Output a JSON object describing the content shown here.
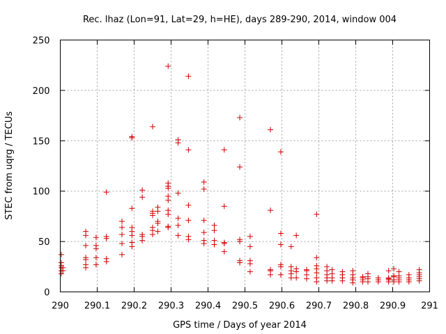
{
  "chart_data": {
    "type": "scatter",
    "title": "Rec. lhaz (Lon=91, Lat=29, h=HE), days 289-290, 2014, window 004",
    "xlabel": "GPS time / Days of year 2014",
    "ylabel": "STEC from uqrg / TECUs",
    "xlim": [
      290,
      291
    ],
    "ylim": [
      0,
      250
    ],
    "xticks": [
      290,
      290.1,
      290.2,
      290.3,
      290.4,
      290.5,
      290.6,
      290.7,
      290.8,
      290.9,
      291
    ],
    "xtick_labels": [
      "290",
      "290.1",
      "290.2",
      "290.3",
      "290.4",
      "290.5",
      "290.6",
      "290.7",
      "290.8",
      "290.9",
      "291"
    ],
    "yticks": [
      0,
      50,
      100,
      150,
      200,
      250
    ],
    "ytick_labels": [
      "0",
      "50",
      "100",
      "150",
      "200",
      "250"
    ],
    "grid": true,
    "marker": "+",
    "color": "#d00000",
    "points": [
      [
        290.003,
        18
      ],
      [
        290.003,
        21
      ],
      [
        290.003,
        24
      ],
      [
        290.003,
        26
      ],
      [
        290.003,
        29
      ],
      [
        290.003,
        37
      ],
      [
        290.007,
        21
      ],
      [
        290.007,
        24
      ],
      [
        290.069,
        24
      ],
      [
        290.069,
        27
      ],
      [
        290.069,
        32
      ],
      [
        290.069,
        34
      ],
      [
        290.069,
        46
      ],
      [
        290.069,
        56
      ],
      [
        290.069,
        60
      ],
      [
        290.097,
        27
      ],
      [
        290.097,
        34
      ],
      [
        290.097,
        43
      ],
      [
        290.097,
        46
      ],
      [
        290.097,
        54
      ],
      [
        290.125,
        30
      ],
      [
        290.125,
        33
      ],
      [
        290.125,
        53
      ],
      [
        290.125,
        55
      ],
      [
        290.125,
        99
      ],
      [
        290.167,
        37
      ],
      [
        290.167,
        48
      ],
      [
        290.167,
        57
      ],
      [
        290.167,
        64
      ],
      [
        290.167,
        70
      ],
      [
        290.194,
        45
      ],
      [
        290.194,
        49
      ],
      [
        290.194,
        56
      ],
      [
        290.194,
        60
      ],
      [
        290.194,
        64
      ],
      [
        290.194,
        83
      ],
      [
        290.194,
        153
      ],
      [
        290.194,
        154
      ],
      [
        290.222,
        51
      ],
      [
        290.222,
        55
      ],
      [
        290.222,
        57
      ],
      [
        290.222,
        94
      ],
      [
        290.222,
        101
      ],
      [
        290.25,
        57
      ],
      [
        290.25,
        61
      ],
      [
        290.25,
        64
      ],
      [
        290.25,
        76
      ],
      [
        290.25,
        78
      ],
      [
        290.25,
        80
      ],
      [
        290.25,
        164
      ],
      [
        290.264,
        60
      ],
      [
        290.264,
        68
      ],
      [
        290.264,
        70
      ],
      [
        290.264,
        80
      ],
      [
        290.264,
        84
      ],
      [
        290.292,
        64
      ],
      [
        290.292,
        65
      ],
      [
        290.292,
        77
      ],
      [
        290.292,
        81
      ],
      [
        290.292,
        91
      ],
      [
        290.292,
        95
      ],
      [
        290.292,
        103
      ],
      [
        290.292,
        105
      ],
      [
        290.292,
        108
      ],
      [
        290.292,
        224
      ],
      [
        290.319,
        56
      ],
      [
        290.319,
        66
      ],
      [
        290.319,
        73
      ],
      [
        290.319,
        98
      ],
      [
        290.319,
        148
      ],
      [
        290.319,
        151
      ],
      [
        290.347,
        52
      ],
      [
        290.347,
        55
      ],
      [
        290.347,
        71
      ],
      [
        290.347,
        86
      ],
      [
        290.347,
        141
      ],
      [
        290.347,
        214
      ],
      [
        290.389,
        48
      ],
      [
        290.389,
        51
      ],
      [
        290.389,
        59
      ],
      [
        290.389,
        71
      ],
      [
        290.389,
        102
      ],
      [
        290.389,
        109
      ],
      [
        290.417,
        47
      ],
      [
        290.417,
        51
      ],
      [
        290.417,
        61
      ],
      [
        290.417,
        66
      ],
      [
        290.444,
        40
      ],
      [
        290.444,
        48
      ],
      [
        290.444,
        49
      ],
      [
        290.444,
        85
      ],
      [
        290.444,
        141
      ],
      [
        290.486,
        29
      ],
      [
        290.486,
        31
      ],
      [
        290.486,
        50
      ],
      [
        290.486,
        52
      ],
      [
        290.486,
        124
      ],
      [
        290.486,
        173
      ],
      [
        290.514,
        20
      ],
      [
        290.514,
        28
      ],
      [
        290.514,
        31
      ],
      [
        290.514,
        45
      ],
      [
        290.514,
        55
      ],
      [
        290.569,
        17
      ],
      [
        290.569,
        21
      ],
      [
        290.569,
        22
      ],
      [
        290.569,
        81
      ],
      [
        290.569,
        161
      ],
      [
        290.597,
        17
      ],
      [
        290.597,
        25
      ],
      [
        290.597,
        27
      ],
      [
        290.597,
        47
      ],
      [
        290.597,
        58
      ],
      [
        290.597,
        139
      ],
      [
        290.625,
        14
      ],
      [
        290.625,
        18
      ],
      [
        290.625,
        21
      ],
      [
        290.625,
        25
      ],
      [
        290.625,
        45
      ],
      [
        290.639,
        14
      ],
      [
        290.639,
        20
      ],
      [
        290.639,
        23
      ],
      [
        290.639,
        56
      ],
      [
        290.667,
        13
      ],
      [
        290.667,
        17
      ],
      [
        290.667,
        21
      ],
      [
        290.667,
        22
      ],
      [
        290.694,
        10
      ],
      [
        290.694,
        14
      ],
      [
        290.694,
        19
      ],
      [
        290.694,
        23
      ],
      [
        290.694,
        26
      ],
      [
        290.694,
        34
      ],
      [
        290.694,
        77
      ],
      [
        290.722,
        11
      ],
      [
        290.722,
        14
      ],
      [
        290.722,
        17
      ],
      [
        290.722,
        21
      ],
      [
        290.722,
        25
      ],
      [
        290.736,
        11
      ],
      [
        290.736,
        14
      ],
      [
        290.736,
        18
      ],
      [
        290.736,
        22
      ],
      [
        290.764,
        11
      ],
      [
        290.764,
        14
      ],
      [
        290.764,
        17
      ],
      [
        290.764,
        20
      ],
      [
        290.792,
        9
      ],
      [
        290.792,
        12
      ],
      [
        290.792,
        14
      ],
      [
        290.792,
        17
      ],
      [
        290.792,
        21
      ],
      [
        290.819,
        10
      ],
      [
        290.819,
        12
      ],
      [
        290.819,
        14
      ],
      [
        290.819,
        15
      ],
      [
        290.833,
        10
      ],
      [
        290.833,
        13
      ],
      [
        290.833,
        15
      ],
      [
        290.833,
        18
      ],
      [
        290.861,
        10
      ],
      [
        290.861,
        12
      ],
      [
        290.861,
        14
      ],
      [
        290.889,
        10
      ],
      [
        290.889,
        12
      ],
      [
        290.889,
        13
      ],
      [
        290.889,
        14
      ],
      [
        290.889,
        21
      ],
      [
        290.903,
        10
      ],
      [
        290.903,
        12
      ],
      [
        290.903,
        15
      ],
      [
        290.903,
        16
      ],
      [
        290.903,
        23
      ],
      [
        290.917,
        10
      ],
      [
        290.917,
        12
      ],
      [
        290.917,
        14
      ],
      [
        290.917,
        16
      ],
      [
        290.917,
        20
      ],
      [
        290.944,
        10
      ],
      [
        290.944,
        12
      ],
      [
        290.944,
        14
      ],
      [
        290.944,
        17
      ],
      [
        290.972,
        11
      ],
      [
        290.972,
        13
      ],
      [
        290.972,
        15
      ],
      [
        290.972,
        17
      ],
      [
        290.972,
        19
      ],
      [
        290.972,
        22
      ]
    ]
  }
}
